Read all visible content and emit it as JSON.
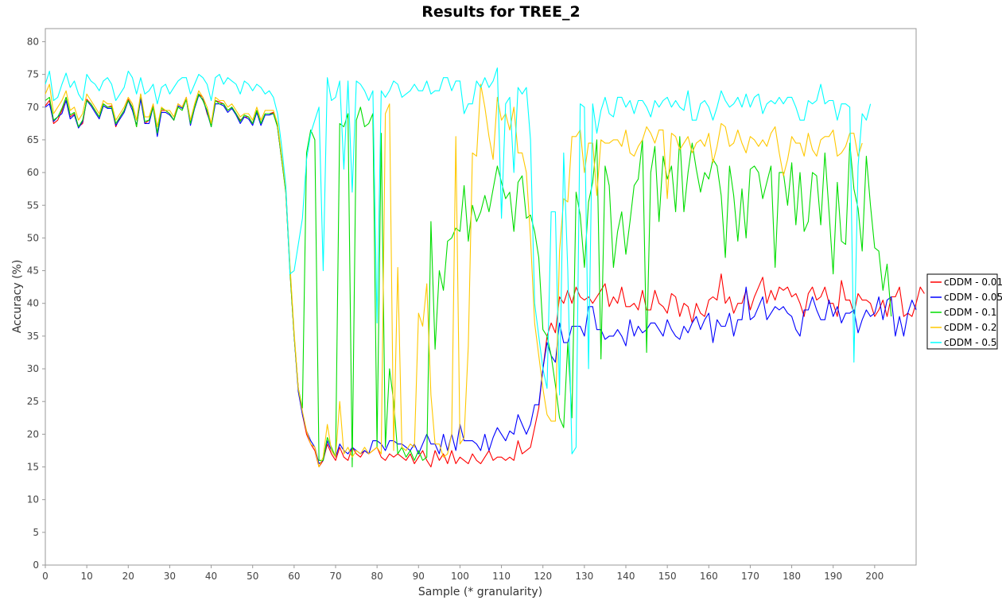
{
  "chart_data": {
    "type": "line",
    "title": "Results for TREE_2",
    "xlabel": "Sample (* granularity)",
    "ylabel": "Accuracy (%)",
    "xlim": [
      0,
      210
    ],
    "ylim": [
      0,
      82
    ],
    "xticks": [
      0,
      10,
      20,
      30,
      40,
      50,
      60,
      70,
      80,
      90,
      100,
      110,
      120,
      130,
      140,
      150,
      160,
      170,
      180,
      190,
      200
    ],
    "yticks": [
      0,
      5,
      10,
      15,
      20,
      25,
      30,
      35,
      40,
      45,
      50,
      55,
      60,
      65,
      70,
      75,
      80
    ],
    "grid": false,
    "legend_position": "right",
    "x_start": 0,
    "x_step": 1,
    "series": [
      {
        "name": "cDDM - 0.01",
        "color": "#ff0000",
        "values": [
          70.2,
          71,
          67.5,
          68,
          69.5,
          71.5,
          68.5,
          69,
          67,
          67.5,
          71.2,
          70.5,
          69.5,
          68.5,
          70.5,
          70,
          70.2,
          67,
          68.5,
          69.5,
          71.2,
          70,
          67,
          71.5,
          67.5,
          68,
          70.2,
          66,
          69.5,
          69.5,
          69,
          68,
          70.5,
          70,
          71.5,
          67.5,
          70,
          72,
          71.5,
          69,
          67.5,
          71,
          70.8,
          70.5,
          69.5,
          70,
          69,
          68,
          68.5,
          68.5,
          67.5,
          69.5,
          67.5,
          69,
          69,
          69.2,
          67,
          62,
          57,
          45,
          35,
          27,
          23,
          20,
          18.5,
          17.5,
          15,
          16,
          18.5,
          17,
          16,
          18,
          16.5,
          16,
          18,
          17,
          16.5,
          17.5,
          17,
          17.5,
          18,
          16.5,
          16,
          17,
          16.5,
          17,
          16.5,
          16,
          17,
          15.5,
          16.5,
          17.5,
          16,
          15,
          17.5,
          16,
          17,
          15.5,
          17.5,
          15.5,
          16.5,
          16,
          15.5,
          17,
          16,
          15.5,
          16.5,
          17.5,
          16,
          16.5,
          16.5,
          16,
          16.5,
          16,
          19,
          17,
          17.5,
          18,
          21,
          24,
          30,
          35,
          37,
          35.5,
          41,
          40,
          42,
          40,
          42.5,
          41,
          40.5,
          41,
          40,
          41,
          42,
          43,
          39.5,
          41,
          40,
          42.5,
          39.5,
          39.5,
          40,
          39,
          42,
          39,
          39,
          42,
          40,
          39.5,
          38.5,
          41.5,
          41,
          38,
          40,
          39.5,
          37,
          40,
          38.5,
          38,
          40.5,
          41,
          40.5,
          44.5,
          40,
          41,
          38.5,
          40,
          40,
          42,
          39,
          41,
          42.5,
          44,
          40,
          42,
          40.5,
          42.5,
          42,
          42.5,
          41,
          41.5,
          40,
          38,
          41.5,
          42.5,
          40.5,
          41,
          42.5,
          40,
          40,
          38,
          43.5,
          40.5,
          40.5,
          38.5,
          41.5,
          40.5,
          40.5,
          40,
          38,
          39,
          40.5,
          38,
          41,
          41,
          42.5,
          38,
          38.5,
          38,
          40,
          42.5,
          41.5
        ]
      },
      {
        "name": "cDDM - 0.05",
        "color": "#0000ff",
        "values": [
          70,
          70.5,
          67.8,
          68.5,
          69,
          71,
          68.2,
          68.8,
          66.8,
          67.8,
          71,
          70.2,
          69.2,
          68.2,
          70.2,
          69.8,
          69.8,
          67.2,
          68.2,
          69.2,
          71,
          69.5,
          67.2,
          71.2,
          67.5,
          67.5,
          70,
          65.5,
          69.2,
          69.2,
          68.8,
          68,
          70.2,
          69.8,
          71.2,
          67.2,
          69.8,
          71.8,
          71.2,
          69.2,
          67,
          70.5,
          70.5,
          70.2,
          69.2,
          69.8,
          68.8,
          67.5,
          68.5,
          68.2,
          67.2,
          69.2,
          67.2,
          68.8,
          68.8,
          69,
          67,
          62,
          57.5,
          45.5,
          35,
          26.5,
          23,
          20.5,
          19,
          18,
          15.5,
          16,
          19,
          17.5,
          16.5,
          18.5,
          17.5,
          17,
          18,
          17.5,
          17,
          17.5,
          17,
          19,
          19,
          18.5,
          17.5,
          19,
          19,
          18.5,
          18.5,
          18,
          17.5,
          18.5,
          17,
          18.5,
          20,
          18.5,
          18.5,
          17,
          20,
          17.5,
          20,
          17.5,
          21.5,
          19,
          19,
          19,
          18.5,
          17.5,
          20,
          17.5,
          19.5,
          21,
          20,
          19,
          20.5,
          20,
          23,
          21.5,
          20,
          21.5,
          24.5,
          24.5,
          30,
          34,
          32,
          31,
          37,
          34,
          34,
          36.5,
          36.5,
          36.5,
          35,
          39.5,
          39.5,
          36,
          36,
          34.5,
          35,
          35,
          36,
          35,
          33.5,
          37.5,
          35,
          36.5,
          35.5,
          36,
          37,
          37,
          36,
          35,
          37.5,
          36,
          35,
          34.5,
          36.5,
          35.5,
          37,
          38,
          36,
          37.5,
          38.5,
          34,
          37.5,
          36.5,
          36.5,
          38.5,
          35,
          37.5,
          37.5,
          42.5,
          37.5,
          38,
          39.5,
          41,
          37.5,
          38.5,
          39.5,
          39,
          39.5,
          38.5,
          38,
          36,
          35,
          39,
          39,
          41,
          39,
          37.5,
          37.5,
          40.5,
          38,
          39.5,
          37,
          38.5,
          38.5,
          39,
          35.5,
          37.5,
          39,
          38,
          38.5,
          41,
          37.5,
          40.5,
          41,
          35,
          38,
          35,
          38.5,
          40.5,
          39
        ]
      },
      {
        "name": "cDDM - 0.1",
        "color": "#00dd00",
        "values": [
          71,
          71.5,
          68,
          68.5,
          69.8,
          71.5,
          68.8,
          69.2,
          67,
          68,
          71,
          70.5,
          69.5,
          68.5,
          70.5,
          70,
          70,
          67.5,
          68.5,
          69.5,
          71,
          70,
          67,
          72,
          67.8,
          68,
          70,
          66,
          69.8,
          69.5,
          69,
          68,
          70,
          69.5,
          71.2,
          67.5,
          70,
          72,
          71,
          69.5,
          67,
          71,
          70.5,
          70.5,
          69.5,
          70,
          69,
          67.8,
          68.8,
          68.5,
          67.5,
          69.5,
          67.5,
          69,
          69,
          69,
          67,
          62,
          57,
          45,
          35,
          27,
          24,
          63,
          66.5,
          65,
          16,
          16,
          19.5,
          18,
          16.5,
          67.5,
          67,
          69,
          15,
          68,
          70,
          67,
          67.5,
          69,
          18,
          66,
          18,
          30,
          25,
          17,
          18,
          16.5,
          17.5,
          16,
          17.5,
          16,
          16.5,
          52.5,
          33,
          45,
          42,
          49.5,
          50,
          51.5,
          51,
          58,
          49.5,
          55,
          52.5,
          54,
          56.5,
          54,
          57.5,
          61,
          58.5,
          56,
          57,
          51,
          58.5,
          59.5,
          53,
          53.5,
          51,
          47,
          36,
          35,
          32,
          27.5,
          22.5,
          21,
          34,
          22.5,
          57,
          53.5,
          45.5,
          55.5,
          58.5,
          65,
          31.5,
          61,
          58,
          45.5,
          51,
          54,
          47.5,
          52.5,
          58,
          59,
          65,
          32.5,
          60,
          64,
          52.5,
          62.5,
          59,
          61,
          54,
          65.5,
          54,
          60,
          64.5,
          60.5,
          57,
          60,
          59,
          62,
          61,
          56.5,
          47,
          61,
          56.5,
          49.5,
          57.5,
          50,
          60.5,
          61,
          60,
          56,
          58.5,
          61,
          45.5,
          60,
          60,
          55,
          61.5,
          52,
          60,
          51,
          52.5,
          60,
          59.5,
          52,
          63,
          54,
          44.5,
          58.5,
          49.5,
          49,
          64.5,
          57.5,
          54.5,
          48,
          62.5,
          55,
          48.5,
          48,
          42,
          46,
          38
        ]
      },
      {
        "name": "cDDM - 0.2",
        "color": "#ffc800",
        "values": [
          72,
          73.5,
          69,
          70,
          71,
          72.5,
          69.5,
          70,
          68,
          69,
          72,
          71,
          70,
          69,
          71,
          70.5,
          70.5,
          68,
          69,
          70,
          71.5,
          70.5,
          68,
          72,
          68.5,
          68.5,
          70.5,
          67,
          70,
          69.5,
          69.5,
          68.5,
          70.5,
          70,
          71.5,
          68,
          70.5,
          72.5,
          71.5,
          70,
          67.5,
          71.5,
          71,
          71,
          70,
          70.5,
          69.5,
          68.5,
          69,
          69,
          68,
          70,
          68,
          69.5,
          69.5,
          69.5,
          67.5,
          62.5,
          57.5,
          46,
          35.5,
          27,
          23.5,
          20.5,
          18.5,
          18,
          15,
          16.5,
          21.5,
          17.5,
          16.5,
          25,
          17,
          18,
          16.5,
          17.5,
          17,
          18,
          17,
          17.5,
          18,
          17,
          69,
          70.5,
          17.5,
          45.5,
          18,
          17.5,
          18.5,
          18,
          38.5,
          36.5,
          43,
          26,
          18.5,
          18.5,
          16.5,
          17,
          20,
          65.5,
          18.5,
          19.5,
          33.5,
          63,
          62.5,
          73.5,
          70,
          65.5,
          62,
          71.5,
          68,
          69,
          66.5,
          70,
          63,
          63,
          60,
          50,
          37,
          32,
          27,
          23,
          22,
          22,
          48,
          56,
          55.5,
          65.5,
          65.5,
          66.5,
          60,
          64.5,
          64.5,
          56.5,
          65,
          64.5,
          64.5,
          65,
          65,
          64,
          66.5,
          63,
          62.5,
          64,
          65,
          67,
          66,
          64.5,
          66.5,
          66.5,
          56,
          66,
          65.5,
          63.5,
          64.5,
          65.5,
          63,
          64.5,
          65,
          64,
          66,
          61.5,
          64,
          67.5,
          67,
          64,
          64.5,
          66.5,
          64.5,
          63,
          65.5,
          65,
          64,
          65,
          64,
          66,
          67,
          63,
          59.5,
          62,
          65.5,
          64.5,
          64.5,
          62.5,
          66,
          63.5,
          62.5,
          65,
          65.5,
          65.5,
          66.5,
          62.5,
          63,
          64,
          66,
          66,
          62.5,
          64.5
        ]
      },
      {
        "name": "cDDM - 0.5",
        "color": "#00ffff",
        "values": [
          73.5,
          75.5,
          71,
          71.5,
          73.5,
          75.2,
          73,
          74,
          72,
          71,
          75,
          74,
          73.5,
          72.5,
          74,
          74.5,
          73.5,
          71,
          72,
          73,
          75.5,
          74.5,
          72,
          74.5,
          72,
          72.5,
          73.5,
          70.5,
          73,
          73.5,
          72,
          73,
          74,
          74.5,
          74.5,
          72,
          73.5,
          75,
          74.5,
          73.5,
          71,
          74.5,
          75,
          73.5,
          74.5,
          74,
          73.5,
          72,
          74,
          73.5,
          72.5,
          73.5,
          73,
          72,
          72.5,
          71.5,
          69,
          64,
          58,
          44.5,
          45,
          49,
          53,
          62,
          66,
          68,
          70,
          45,
          74.5,
          71,
          71.5,
          74,
          60.5,
          74,
          57,
          74,
          73.5,
          72.5,
          71,
          72.5,
          37,
          72.5,
          71.5,
          72.5,
          74,
          73.5,
          71.5,
          72,
          72.5,
          73.5,
          72.5,
          72.5,
          74,
          72,
          72.5,
          72.5,
          74.5,
          74.5,
          72.5,
          74,
          74,
          69,
          70.5,
          70.5,
          74,
          73,
          74.5,
          73,
          74,
          76,
          53,
          70.5,
          71.5,
          60,
          73,
          72,
          73,
          65,
          40,
          35,
          30,
          27,
          54,
          54,
          26,
          63,
          45,
          17,
          18,
          70.5,
          70,
          30,
          70.5,
          66,
          69.5,
          71.5,
          69,
          68.5,
          71.5,
          71.5,
          70,
          71,
          69,
          71,
          71,
          70,
          68.5,
          71,
          70,
          71,
          71.5,
          70,
          71,
          70,
          69.5,
          72.5,
          68,
          68,
          70.5,
          71,
          70,
          68,
          70,
          72.5,
          71,
          70,
          70.5,
          71.5,
          70,
          72,
          70,
          71.5,
          72,
          69,
          70.5,
          71,
          70.5,
          71.5,
          70.5,
          71.5,
          71.5,
          70,
          68,
          68,
          71,
          70.5,
          71,
          73.5,
          70.5,
          71,
          71,
          68,
          70.5,
          70.5,
          70,
          31,
          61,
          69,
          68,
          70.5
        ]
      }
    ]
  }
}
